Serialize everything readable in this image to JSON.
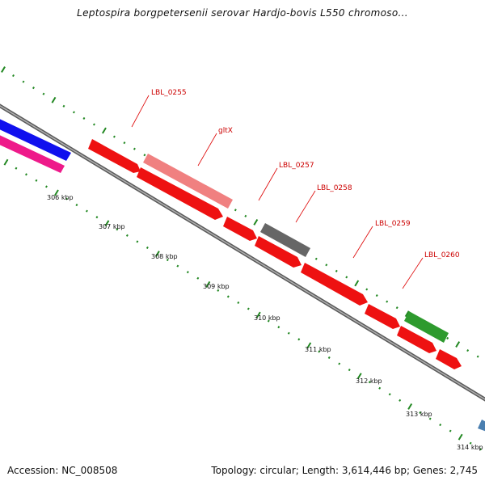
{
  "title": "Leptospira borgpetersenii serovar Hardjo-bovis L550 chromoso...",
  "accession": "Accession: NC_008508",
  "summary": "Topology: circular; Length: 3,614,446 bp; Genes: 2,745",
  "ticks": [
    "306 kbp",
    "307 kbp",
    "308 kbp",
    "309 kbp",
    "310 kbp",
    "311 kbp",
    "312 kbp",
    "313 kbp",
    "314 kbp"
  ],
  "gene_labels": [
    "LBL_0255",
    "gltX",
    "LBL_0257",
    "LBL_0258",
    "LBL_0259",
    "LBL_0260"
  ],
  "colors": {
    "cds": "#ff1a1a",
    "cds_light": "#f08080",
    "gray_feature": "#666666",
    "green_feature": "#2e9a2e",
    "blue_feature": "#1010ee",
    "magenta_feature": "#ee1a8a",
    "steel_feature": "#4a7fb0",
    "backbone": "#808080",
    "tick": "#228822",
    "label_line": "#dd0000"
  }
}
